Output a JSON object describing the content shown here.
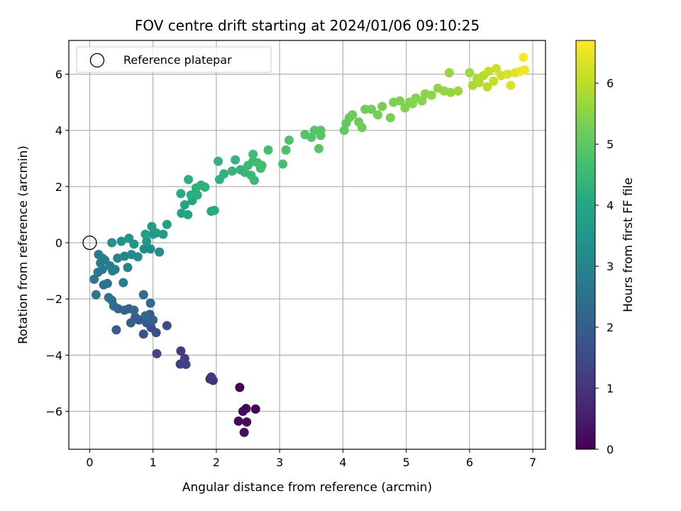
{
  "chart_data": {
    "type": "scatter",
    "title": "FOV centre drift starting at 2024/01/06 09:10:25",
    "xlabel": "Angular distance from reference (arcmin)",
    "ylabel": "Rotation from reference (arcmin)",
    "xlim": [
      -0.33,
      7.2
    ],
    "ylim": [
      -7.35,
      7.2
    ],
    "xticks": [
      0,
      1,
      2,
      3,
      4,
      5,
      6,
      7
    ],
    "yticks": [
      -6,
      -4,
      -2,
      0,
      2,
      4,
      6
    ],
    "grid": true,
    "legend": {
      "placement": "top-left",
      "entries": [
        "Reference platepar"
      ]
    },
    "reference_point": {
      "x": 0,
      "y": 0
    },
    "colorbar": {
      "label": "Hours from first FF file",
      "range": [
        0,
        6.7
      ],
      "ticks": [
        0,
        1,
        2,
        3,
        4,
        5,
        6
      ],
      "colormap": "viridis"
    },
    "points": [
      {
        "x": 2.37,
        "y": -5.15,
        "c": 0.05
      },
      {
        "x": 2.62,
        "y": -5.92,
        "c": 0.1
      },
      {
        "x": 2.47,
        "y": -5.9,
        "c": 0.12
      },
      {
        "x": 2.42,
        "y": -6.0,
        "c": 0.15
      },
      {
        "x": 2.35,
        "y": -6.35,
        "c": 0.18
      },
      {
        "x": 2.48,
        "y": -6.38,
        "c": 0.22
      },
      {
        "x": 2.44,
        "y": -6.75,
        "c": 0.25
      },
      {
        "x": 1.9,
        "y": -4.85,
        "c": 0.9
      },
      {
        "x": 1.95,
        "y": -4.9,
        "c": 0.95
      },
      {
        "x": 1.92,
        "y": -4.78,
        "c": 1.0
      },
      {
        "x": 1.44,
        "y": -3.85,
        "c": 1.15
      },
      {
        "x": 1.5,
        "y": -4.12,
        "c": 1.2
      },
      {
        "x": 1.43,
        "y": -4.32,
        "c": 1.25
      },
      {
        "x": 1.52,
        "y": -4.33,
        "c": 1.3
      },
      {
        "x": 1.06,
        "y": -3.95,
        "c": 1.4
      },
      {
        "x": 1.22,
        "y": -2.95,
        "c": 1.55
      },
      {
        "x": 0.97,
        "y": -3.02,
        "c": 1.6
      },
      {
        "x": 1.05,
        "y": -3.2,
        "c": 1.65
      },
      {
        "x": 0.85,
        "y": -3.25,
        "c": 1.7
      },
      {
        "x": 0.78,
        "y": -2.75,
        "c": 1.75
      },
      {
        "x": 0.95,
        "y": -2.55,
        "c": 1.8
      },
      {
        "x": 0.9,
        "y": -2.85,
        "c": 1.85
      },
      {
        "x": 0.42,
        "y": -3.1,
        "c": 1.9
      },
      {
        "x": 0.65,
        "y": -2.85,
        "c": 1.95
      },
      {
        "x": 0.72,
        "y": -2.65,
        "c": 2.0
      },
      {
        "x": 1.0,
        "y": -2.75,
        "c": 2.02
      },
      {
        "x": 0.62,
        "y": -2.35,
        "c": 2.05
      },
      {
        "x": 0.55,
        "y": -2.4,
        "c": 2.1
      },
      {
        "x": 0.45,
        "y": -2.35,
        "c": 2.15
      },
      {
        "x": 0.7,
        "y": -2.4,
        "c": 2.2
      },
      {
        "x": 0.88,
        "y": -2.6,
        "c": 2.25
      },
      {
        "x": 0.96,
        "y": -2.15,
        "c": 2.3
      },
      {
        "x": 0.85,
        "y": -1.85,
        "c": 2.35
      },
      {
        "x": 0.38,
        "y": -2.25,
        "c": 2.4
      },
      {
        "x": 0.35,
        "y": -2.05,
        "c": 2.45
      },
      {
        "x": 0.3,
        "y": -1.95,
        "c": 2.5
      },
      {
        "x": 0.22,
        "y": -1.5,
        "c": 2.55
      },
      {
        "x": 0.28,
        "y": -1.45,
        "c": 2.6
      },
      {
        "x": 0.1,
        "y": -1.85,
        "c": 2.62
      },
      {
        "x": 0.07,
        "y": -1.3,
        "c": 2.65
      },
      {
        "x": 0.13,
        "y": -1.05,
        "c": 2.7
      },
      {
        "x": 0.2,
        "y": -0.95,
        "c": 2.72
      },
      {
        "x": 0.17,
        "y": -0.72,
        "c": 2.75
      },
      {
        "x": 0.24,
        "y": -0.62,
        "c": 2.78
      },
      {
        "x": 0.14,
        "y": -0.42,
        "c": 2.8
      },
      {
        "x": 0.2,
        "y": -0.55,
        "c": 2.82
      },
      {
        "x": 0.32,
        "y": -0.82,
        "c": 2.85
      },
      {
        "x": 0.36,
        "y": -1.0,
        "c": 2.88
      },
      {
        "x": 0.4,
        "y": -0.95,
        "c": 2.9
      },
      {
        "x": 0.53,
        "y": -1.42,
        "c": 2.92
      },
      {
        "x": 0.6,
        "y": -0.88,
        "c": 2.95
      },
      {
        "x": 0.44,
        "y": -0.55,
        "c": 3.0
      },
      {
        "x": 0.55,
        "y": -0.48,
        "c": 3.05
      },
      {
        "x": 0.66,
        "y": -0.42,
        "c": 3.1
      },
      {
        "x": 0.76,
        "y": -0.5,
        "c": 3.15
      },
      {
        "x": 0.86,
        "y": -0.22,
        "c": 3.2
      },
      {
        "x": 0.96,
        "y": -0.22,
        "c": 3.25
      },
      {
        "x": 1.1,
        "y": -0.33,
        "c": 3.3
      },
      {
        "x": 0.5,
        "y": 0.05,
        "c": 3.35
      },
      {
        "x": 0.35,
        "y": 0.0,
        "c": 3.4
      },
      {
        "x": 0.62,
        "y": 0.16,
        "c": 3.45
      },
      {
        "x": 0.7,
        "y": -0.05,
        "c": 3.5
      },
      {
        "x": 0.9,
        "y": 0.05,
        "c": 3.55
      },
      {
        "x": 1.0,
        "y": 0.3,
        "c": 3.6
      },
      {
        "x": 1.05,
        "y": 0.35,
        "c": 3.65
      },
      {
        "x": 0.98,
        "y": 0.58,
        "c": 3.7
      },
      {
        "x": 1.16,
        "y": 0.3,
        "c": 3.72
      },
      {
        "x": 1.22,
        "y": 0.65,
        "c": 3.75
      },
      {
        "x": 0.88,
        "y": 0.3,
        "c": 3.78
      },
      {
        "x": 1.45,
        "y": 1.05,
        "c": 3.85
      },
      {
        "x": 1.55,
        "y": 1.0,
        "c": 3.9
      },
      {
        "x": 1.5,
        "y": 1.35,
        "c": 3.95
      },
      {
        "x": 1.62,
        "y": 1.5,
        "c": 4.0
      },
      {
        "x": 1.92,
        "y": 1.12,
        "c": 4.05
      },
      {
        "x": 1.97,
        "y": 1.15,
        "c": 4.1
      },
      {
        "x": 1.44,
        "y": 1.75,
        "c": 4.12
      },
      {
        "x": 1.6,
        "y": 1.7,
        "c": 4.15
      },
      {
        "x": 1.7,
        "y": 1.7,
        "c": 4.18
      },
      {
        "x": 1.56,
        "y": 2.25,
        "c": 4.2
      },
      {
        "x": 1.68,
        "y": 1.95,
        "c": 4.22
      },
      {
        "x": 1.82,
        "y": 1.98,
        "c": 4.25
      },
      {
        "x": 1.76,
        "y": 2.05,
        "c": 4.28
      },
      {
        "x": 2.05,
        "y": 2.25,
        "c": 4.3
      },
      {
        "x": 2.12,
        "y": 2.45,
        "c": 4.32
      },
      {
        "x": 2.03,
        "y": 2.9,
        "c": 4.35
      },
      {
        "x": 2.25,
        "y": 2.55,
        "c": 4.38
      },
      {
        "x": 2.3,
        "y": 2.95,
        "c": 4.4
      },
      {
        "x": 2.38,
        "y": 2.6,
        "c": 4.42
      },
      {
        "x": 2.45,
        "y": 2.5,
        "c": 4.45
      },
      {
        "x": 2.55,
        "y": 2.4,
        "c": 4.48
      },
      {
        "x": 2.6,
        "y": 2.22,
        "c": 4.5
      },
      {
        "x": 2.5,
        "y": 2.75,
        "c": 4.52
      },
      {
        "x": 2.58,
        "y": 2.9,
        "c": 4.55
      },
      {
        "x": 2.65,
        "y": 2.85,
        "c": 4.58
      },
      {
        "x": 2.7,
        "y": 2.65,
        "c": 4.6
      },
      {
        "x": 2.58,
        "y": 3.15,
        "c": 4.62
      },
      {
        "x": 2.72,
        "y": 2.75,
        "c": 4.65
      },
      {
        "x": 2.82,
        "y": 3.3,
        "c": 4.68
      },
      {
        "x": 3.05,
        "y": 2.8,
        "c": 4.72
      },
      {
        "x": 3.1,
        "y": 3.3,
        "c": 4.75
      },
      {
        "x": 3.15,
        "y": 3.65,
        "c": 4.8
      },
      {
        "x": 3.4,
        "y": 3.85,
        "c": 4.85
      },
      {
        "x": 3.5,
        "y": 3.75,
        "c": 4.88
      },
      {
        "x": 3.55,
        "y": 4.0,
        "c": 4.9
      },
      {
        "x": 3.65,
        "y": 3.82,
        "c": 4.92
      },
      {
        "x": 3.62,
        "y": 3.35,
        "c": 4.95
      },
      {
        "x": 3.65,
        "y": 4.0,
        "c": 4.98
      },
      {
        "x": 4.02,
        "y": 4.0,
        "c": 5.05
      },
      {
        "x": 4.05,
        "y": 4.25,
        "c": 5.1
      },
      {
        "x": 4.1,
        "y": 4.45,
        "c": 5.12
      },
      {
        "x": 4.15,
        "y": 4.55,
        "c": 5.15
      },
      {
        "x": 4.25,
        "y": 4.3,
        "c": 5.18
      },
      {
        "x": 4.3,
        "y": 4.1,
        "c": 5.2
      },
      {
        "x": 4.35,
        "y": 4.75,
        "c": 5.22
      },
      {
        "x": 4.45,
        "y": 4.75,
        "c": 5.25
      },
      {
        "x": 4.55,
        "y": 4.55,
        "c": 5.28
      },
      {
        "x": 4.62,
        "y": 4.85,
        "c": 5.3
      },
      {
        "x": 4.75,
        "y": 4.45,
        "c": 5.32
      },
      {
        "x": 4.8,
        "y": 5.0,
        "c": 5.35
      },
      {
        "x": 4.9,
        "y": 5.05,
        "c": 5.38
      },
      {
        "x": 4.98,
        "y": 4.8,
        "c": 5.4
      },
      {
        "x": 5.05,
        "y": 5.0,
        "c": 5.42
      },
      {
        "x": 5.1,
        "y": 4.95,
        "c": 5.45
      },
      {
        "x": 5.15,
        "y": 5.15,
        "c": 5.48
      },
      {
        "x": 5.25,
        "y": 5.05,
        "c": 5.5
      },
      {
        "x": 5.3,
        "y": 5.3,
        "c": 5.52
      },
      {
        "x": 5.4,
        "y": 5.25,
        "c": 5.55
      },
      {
        "x": 5.5,
        "y": 5.5,
        "c": 5.58
      },
      {
        "x": 5.6,
        "y": 5.4,
        "c": 5.6
      },
      {
        "x": 5.7,
        "y": 5.35,
        "c": 5.62
      },
      {
        "x": 5.68,
        "y": 6.05,
        "c": 5.65
      },
      {
        "x": 5.82,
        "y": 5.4,
        "c": 5.68
      },
      {
        "x": 6.0,
        "y": 6.05,
        "c": 5.75
      },
      {
        "x": 6.05,
        "y": 5.6,
        "c": 5.8
      },
      {
        "x": 6.12,
        "y": 5.85,
        "c": 5.85
      },
      {
        "x": 6.15,
        "y": 5.7,
        "c": 5.9
      },
      {
        "x": 6.22,
        "y": 5.95,
        "c": 5.95
      },
      {
        "x": 6.28,
        "y": 5.55,
        "c": 6.0
      },
      {
        "x": 6.3,
        "y": 6.1,
        "c": 6.05
      },
      {
        "x": 6.38,
        "y": 5.75,
        "c": 6.1
      },
      {
        "x": 6.42,
        "y": 6.2,
        "c": 6.15
      },
      {
        "x": 6.5,
        "y": 5.95,
        "c": 6.2
      },
      {
        "x": 6.6,
        "y": 6.0,
        "c": 6.3
      },
      {
        "x": 6.65,
        "y": 5.6,
        "c": 6.35
      },
      {
        "x": 6.72,
        "y": 6.05,
        "c": 6.4
      },
      {
        "x": 6.8,
        "y": 6.1,
        "c": 6.5
      },
      {
        "x": 6.87,
        "y": 6.15,
        "c": 6.6
      },
      {
        "x": 6.85,
        "y": 6.6,
        "c": 6.7
      }
    ]
  }
}
